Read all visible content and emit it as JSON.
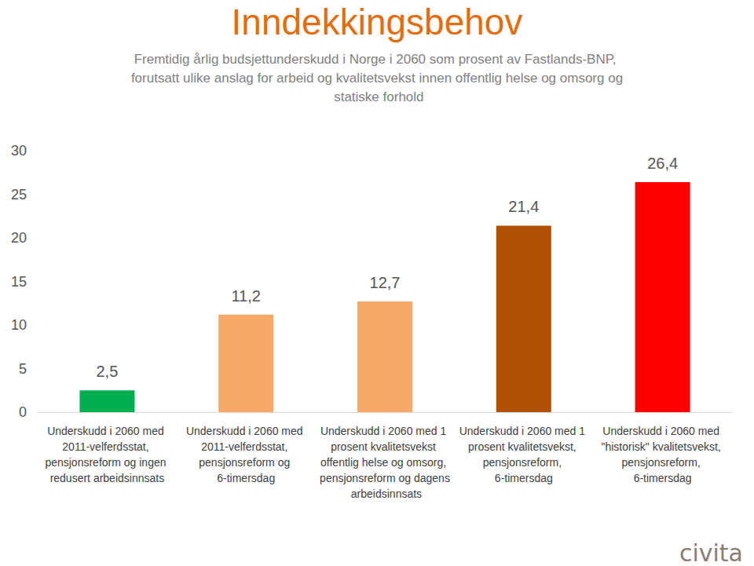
{
  "chart_data": {
    "type": "bar",
    "title": "Inndekkingsbehov",
    "subtitle": "Fremtidig årlig budsjettunderskudd i Norge i 2060 som prosent av Fastlands-BNP, forutsatt ulike anslag for arbeid og kvalitetsvekst innen offentlig helse og omsorg og statiske forhold",
    "categories": [
      "Underskudd i 2060 med 2011-velferdsstat, pensjonsreform og ingen redusert arbeidsinnsats",
      "Underskudd i 2060 med 2011-velferdsstat, pensjonsreform og 6-timersdag",
      "Underskudd i 2060 med 1 prosent kvalitetsvekst offentlig helse og omsorg, pensjonsreform og dagens arbeidsinnsats",
      "Underskudd i 2060 med 1 prosent kvalitetsvekst, pensjonsreform, 6-timersdag",
      "Underskudd i 2060 med \"historisk\" kvalitetsvekst, pensjonsreform, 6-timersdag"
    ],
    "values": [
      2.5,
      11.2,
      12.7,
      21.4,
      26.4
    ],
    "value_labels": [
      "2,5",
      "11,2",
      "12,7",
      "21,4",
      "26,4"
    ],
    "colors": [
      "#00b050",
      "#f7aa68",
      "#f7aa68",
      "#b05004",
      "#ff0000"
    ],
    "ylim": [
      0,
      30
    ],
    "yticks": [
      0,
      5,
      10,
      15,
      20,
      25,
      30
    ],
    "grid": false,
    "data_labels": true,
    "annotations": [
      "civita"
    ]
  }
}
